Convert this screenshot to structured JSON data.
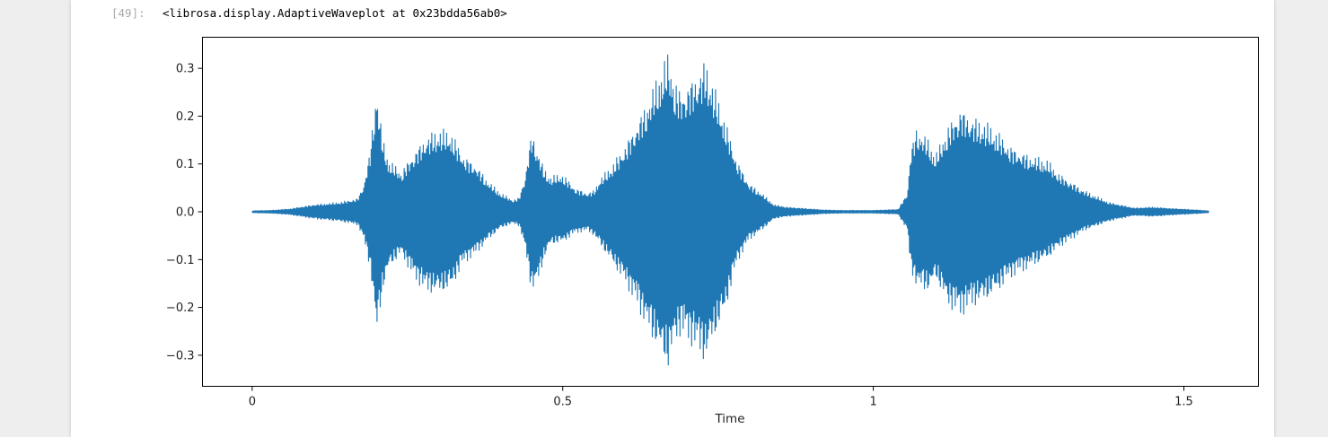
{
  "cell": {
    "prompt": "[49]:",
    "output_text": "<librosa.display.AdaptiveWaveplot at 0x23bdda56ab0>"
  },
  "chart_data": {
    "type": "line",
    "title": "",
    "xlabel": "Time",
    "ylabel": "",
    "xlim": [
      -0.08,
      1.62
    ],
    "ylim": [
      -0.365,
      0.365
    ],
    "x_ticks": [
      0,
      0.5,
      1,
      1.5
    ],
    "x_tick_labels": [
      "0",
      "0.5",
      "1",
      "1.5"
    ],
    "y_ticks": [
      0.3,
      0.2,
      0.1,
      0.0,
      -0.1,
      -0.2,
      -0.3
    ],
    "y_tick_labels": [
      "0.3",
      "0.2",
      "0.1",
      "0.0",
      "−0.1",
      "−0.2",
      "−0.3"
    ],
    "grid": false,
    "legend": "none",
    "series": [
      {
        "color": "#1f77b4",
        "envelope_time": [
          0,
          0.03,
          0.06,
          0.1,
          0.14,
          0.17,
          0.18,
          0.19,
          0.195,
          0.2,
          0.21,
          0.22,
          0.24,
          0.26,
          0.28,
          0.3,
          0.32,
          0.34,
          0.36,
          0.38,
          0.4,
          0.42,
          0.43,
          0.44,
          0.45,
          0.46,
          0.47,
          0.48,
          0.5,
          0.52,
          0.54,
          0.55,
          0.56,
          0.58,
          0.6,
          0.62,
          0.64,
          0.66,
          0.67,
          0.68,
          0.69,
          0.7,
          0.72,
          0.73,
          0.74,
          0.76,
          0.78,
          0.8,
          0.82,
          0.84,
          0.86,
          0.88,
          0.9,
          0.92,
          0.95,
          1.0,
          1.04,
          1.055,
          1.06,
          1.07,
          1.09,
          1.1,
          1.12,
          1.14,
          1.16,
          1.18,
          1.2,
          1.22,
          1.25,
          1.28,
          1.3,
          1.34,
          1.38,
          1.42,
          1.45,
          1.48,
          1.52,
          1.54
        ],
        "amplitude_max": [
          0.002,
          0.003,
          0.006,
          0.015,
          0.02,
          0.028,
          0.06,
          0.13,
          0.2,
          0.265,
          0.155,
          0.11,
          0.085,
          0.125,
          0.16,
          0.175,
          0.17,
          0.12,
          0.1,
          0.065,
          0.04,
          0.025,
          0.03,
          0.08,
          0.17,
          0.13,
          0.09,
          0.075,
          0.08,
          0.05,
          0.04,
          0.045,
          0.07,
          0.1,
          0.14,
          0.19,
          0.245,
          0.31,
          0.335,
          0.28,
          0.255,
          0.27,
          0.3,
          0.32,
          0.28,
          0.2,
          0.11,
          0.06,
          0.04,
          0.015,
          0.01,
          0.008,
          0.006,
          0.004,
          0.003,
          0.003,
          0.005,
          0.04,
          0.13,
          0.18,
          0.15,
          0.12,
          0.18,
          0.22,
          0.2,
          0.19,
          0.17,
          0.14,
          0.12,
          0.11,
          0.08,
          0.045,
          0.02,
          0.008,
          0.01,
          0.007,
          0.004,
          0.002
        ],
        "amplitude_min": [
          -0.002,
          -0.003,
          -0.006,
          -0.015,
          -0.02,
          -0.028,
          -0.06,
          -0.12,
          -0.18,
          -0.265,
          -0.17,
          -0.12,
          -0.09,
          -0.14,
          -0.17,
          -0.175,
          -0.165,
          -0.11,
          -0.09,
          -0.06,
          -0.035,
          -0.025,
          -0.03,
          -0.08,
          -0.17,
          -0.15,
          -0.1,
          -0.07,
          -0.065,
          -0.045,
          -0.04,
          -0.05,
          -0.07,
          -0.11,
          -0.15,
          -0.2,
          -0.26,
          -0.31,
          -0.335,
          -0.28,
          -0.26,
          -0.27,
          -0.3,
          -0.32,
          -0.28,
          -0.22,
          -0.11,
          -0.06,
          -0.04,
          -0.015,
          -0.01,
          -0.008,
          -0.006,
          -0.004,
          -0.003,
          -0.003,
          -0.005,
          -0.04,
          -0.12,
          -0.16,
          -0.17,
          -0.14,
          -0.2,
          -0.22,
          -0.2,
          -0.19,
          -0.17,
          -0.14,
          -0.12,
          -0.1,
          -0.075,
          -0.04,
          -0.02,
          -0.008,
          -0.01,
          -0.007,
          -0.004,
          -0.002
        ]
      }
    ]
  }
}
